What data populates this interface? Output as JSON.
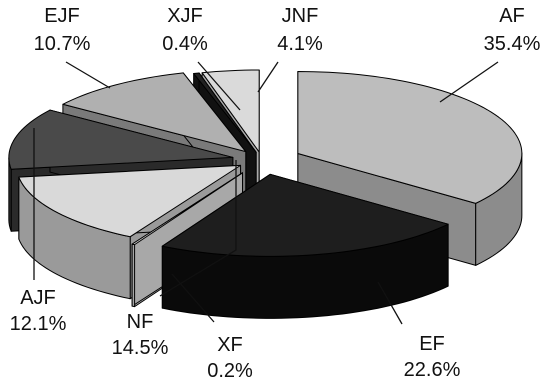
{
  "chart_data": {
    "type": "pie",
    "style": "3d-exploded",
    "grid": false,
    "legend": "none",
    "slices": [
      {
        "label": "AF",
        "value": 35.4,
        "percent_text": "35.4%",
        "colors": {
          "top": "#bdbdbd",
          "side": "#8c8c8c"
        }
      },
      {
        "label": "EF",
        "value": 22.6,
        "percent_text": "22.6%",
        "colors": {
          "top": "#1e1e1e",
          "side": "#0a0a0a"
        }
      },
      {
        "label": "XF",
        "value": 0.2,
        "percent_text": "0.2%",
        "colors": {
          "top": "#d6d6d6",
          "side": "#a8a8a8"
        }
      },
      {
        "label": "NF",
        "value": 14.5,
        "percent_text": "14.5%",
        "colors": {
          "top": "#d9d9d9",
          "side": "#9a9a9a"
        }
      },
      {
        "label": "AJF",
        "value": 12.1,
        "percent_text": "12.1%",
        "colors": {
          "top": "#4a4a4a",
          "side": "#2a2a2a"
        }
      },
      {
        "label": "EJF",
        "value": 10.7,
        "percent_text": "10.7%",
        "colors": {
          "top": "#b0b0b0",
          "side": "#7a7a7a"
        }
      },
      {
        "label": "XJF",
        "value": 0.4,
        "percent_text": "0.4%",
        "colors": {
          "top": "#222222",
          "side": "#111111"
        }
      },
      {
        "label": "JNF",
        "value": 4.1,
        "percent_text": "4.1%",
        "colors": {
          "top": "#dadada",
          "side": "#aaaaaa"
        }
      }
    ]
  }
}
